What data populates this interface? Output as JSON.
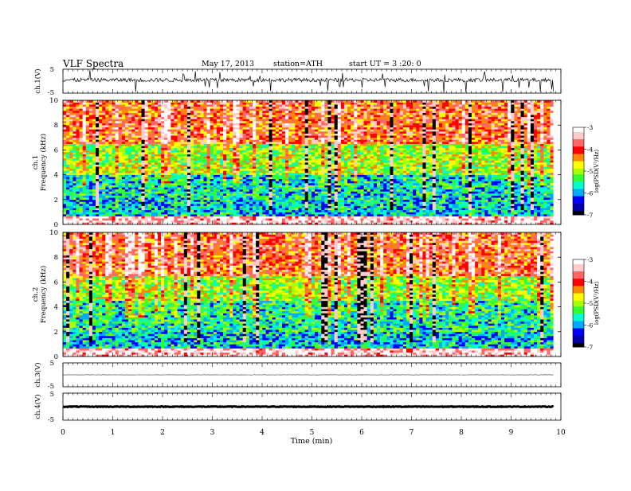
{
  "header": {
    "title": "VLF  Spectra",
    "date": "May 17, 2013",
    "station": "station=ATH",
    "start": "start  UT  =   3 :20: 0"
  },
  "colors": {
    "spectrogram_dominant": [
      "#0033cc",
      "#00b0ff",
      "#33dd66",
      "#99ff33",
      "#ffee00",
      "#ff8800",
      "#dd1100",
      "#000000"
    ],
    "colormap": [
      "#000000",
      "#0000aa",
      "#0000ff",
      "#00aaff",
      "#00ffcc",
      "#33ff33",
      "#aaff00",
      "#ffff00",
      "#ff8800",
      "#ff0000",
      "#ff6666",
      "#ffcccc",
      "#ffffff"
    ],
    "trace": "#000000"
  },
  "chart_data": [
    {
      "type": "line",
      "panel": "ch1-waveform",
      "ylabel": "ch.1(V)",
      "ylim": [
        -5,
        5
      ],
      "yticks": [
        "5",
        "-5"
      ],
      "baseline_v": 0.5,
      "description_values": "noisy trace centered near 0.5 V with spikes toward ±5 V"
    },
    {
      "type": "heatmap",
      "panel": "ch1-spectrogram",
      "ylabel_top": "ch.1",
      "ylabel": "Frequency  (kHz)",
      "ylim": [
        0,
        10
      ],
      "yticks": [
        "0",
        "2",
        "4",
        "6",
        "8",
        "10"
      ],
      "colorbar": {
        "label": "log(PSD(V²/Hz)",
        "range": [
          -7,
          -3
        ],
        "ticks": [
          "-3",
          "-4",
          "-5",
          "-6",
          "-7"
        ]
      },
      "bands": [
        {
          "from": 0,
          "to": 0.6,
          "level": -3.2
        },
        {
          "from": 0.6,
          "to": 2.0,
          "level": -5.8
        },
        {
          "from": 2.0,
          "to": 4.0,
          "level": -5.7
        },
        {
          "from": 4.0,
          "to": 6.5,
          "level": -5.0
        },
        {
          "from": 6.5,
          "to": 10,
          "level": -4.0
        }
      ]
    },
    {
      "type": "heatmap",
      "panel": "ch2-spectrogram",
      "ylabel_top": "ch.2",
      "ylabel": "Frequency  (kHz)",
      "ylim": [
        0,
        10
      ],
      "yticks": [
        "0",
        "2",
        "4",
        "6",
        "8",
        "10"
      ],
      "colorbar": {
        "label": "log(PSD(V²/Hz)",
        "range": [
          -7,
          -3
        ],
        "ticks": [
          "-3",
          "-4",
          "-5",
          "-6",
          "-7"
        ]
      },
      "bands": [
        {
          "from": 0,
          "to": 0.6,
          "level": -3.2
        },
        {
          "from": 0.6,
          "to": 2.0,
          "level": -5.8
        },
        {
          "from": 2.0,
          "to": 4.5,
          "level": -5.6
        },
        {
          "from": 4.5,
          "to": 6.5,
          "level": -5.0
        },
        {
          "from": 6.5,
          "to": 10,
          "level": -4.0
        }
      ]
    },
    {
      "type": "line",
      "panel": "ch3-waveform",
      "ylabel": "ch.3(V)",
      "ylim": [
        -5,
        5
      ],
      "yticks": [
        "5",
        "-5"
      ],
      "baseline_v": 0.0
    },
    {
      "type": "line",
      "panel": "ch4-waveform",
      "ylabel": "ch.4(V)",
      "ylim": [
        -5,
        5
      ],
      "yticks": [
        "5",
        "-5"
      ],
      "baseline_v": 0.0
    }
  ],
  "xaxis": {
    "xlabel": "Time  (min)",
    "xlim": [
      0,
      10
    ],
    "data_end_min": 9.85,
    "ticks": [
      "0",
      "1",
      "2",
      "3",
      "4",
      "5",
      "6",
      "7",
      "8",
      "9",
      "10"
    ]
  }
}
